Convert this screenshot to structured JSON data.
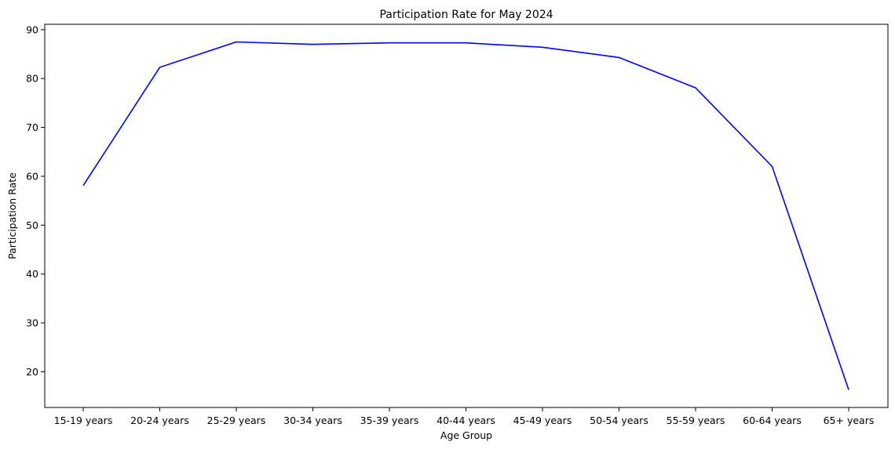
{
  "chart_data": {
    "type": "line",
    "title": "Participation Rate for May 2024",
    "xlabel": "Age Group",
    "ylabel": "Participation Rate",
    "categories": [
      "15-19 years",
      "20-24 years",
      "25-29 years",
      "30-34 years",
      "35-39 years",
      "40-44 years",
      "45-49 years",
      "50-54 years",
      "55-59 years",
      "60-64 years",
      "65+ years"
    ],
    "series": [
      {
        "name": "Participation Rate",
        "color": "#0000ff",
        "values": [
          58.1,
          82.3,
          87.5,
          87.0,
          87.3,
          87.3,
          86.4,
          84.3,
          78.1,
          62.0,
          16.3
        ]
      }
    ],
    "ylim": [
      12.7,
      91.1
    ],
    "yticks": [
      20,
      30,
      40,
      50,
      60,
      70,
      80,
      90
    ],
    "grid": false,
    "legend": "none"
  }
}
